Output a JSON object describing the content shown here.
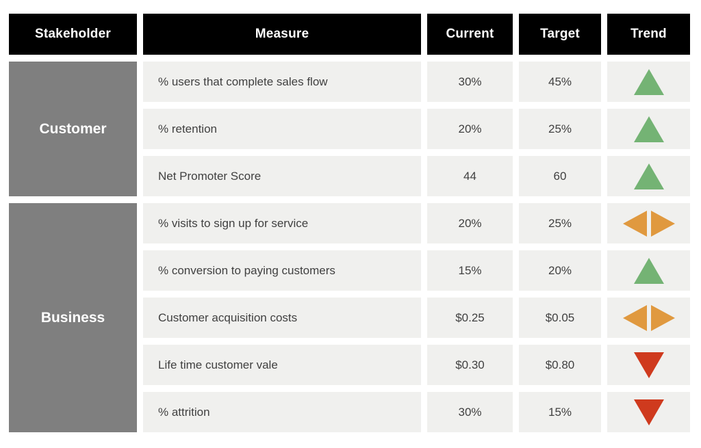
{
  "chart_data": {
    "type": "table",
    "columns": [
      "Stakeholder",
      "Measure",
      "Current",
      "Target",
      "Trend"
    ],
    "groups": [
      {
        "label": "Customer",
        "row_count": 3
      },
      {
        "label": "Business",
        "row_count": 5
      }
    ],
    "rows": [
      {
        "stakeholder": "Customer",
        "measure": "% users that complete sales flow",
        "current": "30%",
        "target": "45%",
        "trend": "up"
      },
      {
        "stakeholder": "Customer",
        "measure": "% retention",
        "current": "20%",
        "target": "25%",
        "trend": "up"
      },
      {
        "stakeholder": "Customer",
        "measure": "Net Promoter Score",
        "current": "44",
        "target": "60",
        "trend": "up"
      },
      {
        "stakeholder": "Business",
        "measure": "% visits to sign up for service",
        "current": "20%",
        "target": "25%",
        "trend": "steady"
      },
      {
        "stakeholder": "Business",
        "measure": "% conversion to paying customers",
        "current": "15%",
        "target": "20%",
        "trend": "up"
      },
      {
        "stakeholder": "Business",
        "measure": "Customer acquisition costs",
        "current": "$0.25",
        "target": "$0.05",
        "trend": "steady"
      },
      {
        "stakeholder": "Business",
        "measure": "Life time customer vale",
        "current": "$0.30",
        "target": "$0.80",
        "trend": "down"
      },
      {
        "stakeholder": "Business",
        "measure": "% attrition",
        "current": "30%",
        "target": "15%",
        "trend": "down"
      }
    ],
    "legend_position": "none",
    "grid": false
  },
  "trend_icons": {
    "up": "green-up-triangle",
    "steady": "orange-horizontal-diamond",
    "down": "red-down-triangle"
  },
  "colors": {
    "header_bg": "#000000",
    "header_fg": "#ffffff",
    "group_bg": "#7f7f7f",
    "group_fg": "#ffffff",
    "cell_bg": "#f0f0ee",
    "cell_fg": "#404040",
    "trend_up": "#74b374",
    "trend_steady": "#e0993f",
    "trend_down": "#cf3a1e"
  }
}
